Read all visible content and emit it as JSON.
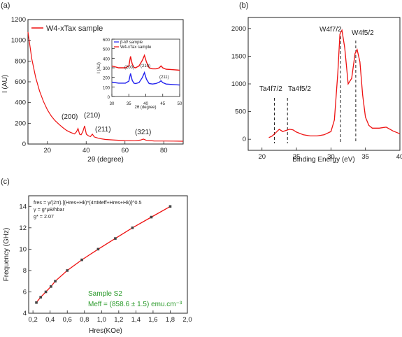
{
  "chart_data": [
    {
      "panel_label": "(a)",
      "type": "line",
      "xlabel": "2θ (degree)",
      "ylabel": "I (AU)",
      "xlim": [
        10,
        90
      ],
      "ylim": [
        0,
        1200
      ],
      "xticks": [
        "20",
        "40",
        "60",
        "80"
      ],
      "yticks": [
        "0",
        "200",
        "400",
        "600",
        "800",
        "1000",
        "1200"
      ],
      "legend": {
        "position": "top-right",
        "series_name": "W4-xTax sample"
      },
      "series": [
        {
          "name": "W4-xTax sample",
          "color": "#ee1111",
          "x": [
            10,
            12,
            14,
            16,
            18,
            20,
            22,
            24,
            26,
            28,
            30,
            32,
            34,
            35,
            35.8,
            36.6,
            37.4,
            38.3,
            39.2,
            40.1,
            41.2,
            42.2,
            43.2,
            44.2,
            46,
            48,
            50,
            55,
            60,
            65,
            68,
            69.5,
            71,
            75,
            80,
            85,
            90
          ],
          "y": [
            1080,
            820,
            640,
            510,
            410,
            330,
            270,
            225,
            190,
            158,
            130,
            112,
            98,
            118,
            150,
            95,
            90,
            120,
            175,
            95,
            78,
            72,
            95,
            68,
            58,
            50,
            44,
            38,
            33,
            32,
            38,
            48,
            36,
            30,
            29,
            28,
            27
          ]
        }
      ],
      "annotations": [
        "(200)",
        "(210)",
        "(211)",
        "(321)"
      ],
      "inset": {
        "xlabel": "2θ (degree)",
        "ylabel": "I (AU)",
        "xlim": [
          30,
          50
        ],
        "ylim": [
          0,
          600
        ],
        "xticks": [
          "30",
          "35",
          "40",
          "45",
          "50"
        ],
        "yticks": [
          "0",
          "100",
          "200",
          "300",
          "400",
          "500",
          "600"
        ],
        "legend": [
          "β-W sample",
          "W4-xTax sample"
        ],
        "annotations": [
          "(200)",
          "(210)",
          "(211)"
        ],
        "series": [
          {
            "name": "β-W sample",
            "color": "#2222ee",
            "x": [
              30,
              32,
              34,
              35,
              35.5,
              36,
              36.5,
              37,
              38,
              39,
              39.6,
              40.2,
              41,
              42,
              43,
              44,
              44.5,
              45,
              46,
              48,
              50
            ],
            "y": [
              150,
              140,
              140,
              160,
              240,
              170,
              140,
              135,
              145,
              200,
              250,
              180,
              135,
              130,
              135,
              150,
              165,
              145,
              130,
              125,
              120
            ]
          },
          {
            "name": "W4-xTax sample",
            "color": "#ee1111",
            "x": [
              30,
              32,
              34,
              35,
              35.5,
              36,
              36.5,
              37,
              38,
              39,
              39.6,
              40.2,
              41,
              42,
              43,
              44,
              44.5,
              45,
              46,
              48,
              50
            ],
            "y": [
              320,
              300,
              300,
              320,
              420,
              340,
              305,
              300,
              320,
              380,
              430,
              360,
              300,
              290,
              290,
              300,
              320,
              300,
              285,
              280,
              275
            ]
          }
        ]
      }
    },
    {
      "panel_label": "(b)",
      "type": "line",
      "xlabel": "Binding Energy (eV)",
      "xlim": [
        18,
        40
      ],
      "ylim": [
        -200,
        2200
      ],
      "xticks": [
        "20",
        "25",
        "30",
        "35",
        "40"
      ],
      "yticks": [
        "0",
        "500",
        "1000",
        "1500",
        "2000"
      ],
      "series": [
        {
          "name": "",
          "color": "#ee1111",
          "x": [
            21,
            21.5,
            22,
            22.5,
            23,
            23.5,
            24,
            24.5,
            25,
            26,
            27,
            28,
            29,
            30,
            30.5,
            31,
            31.3,
            31.6,
            32,
            32.5,
            33,
            33.5,
            33.8,
            34.2,
            34.6,
            35,
            35.5,
            36,
            37,
            38,
            39,
            40
          ],
          "y": [
            30,
            60,
            120,
            180,
            140,
            160,
            180,
            170,
            130,
            80,
            60,
            60,
            80,
            140,
            350,
            1200,
            1900,
            1970,
            1650,
            1000,
            1100,
            1550,
            1620,
            1400,
            800,
            400,
            250,
            200,
            200,
            220,
            150,
            100
          ]
        }
      ],
      "reference_lines_x": [
        21.8,
        23.7,
        31.4,
        33.6
      ],
      "annotations": [
        "Ta4f7/2",
        "Ta4f5/2",
        "W4f7/2",
        "W4f5/2"
      ]
    },
    {
      "panel_label": "(c)",
      "type": "scatter",
      "xlabel": "Hres(KOe)",
      "ylabel": "Frequency (GHz)",
      "xlim": [
        0.15,
        2.0
      ],
      "ylim": [
        4,
        15
      ],
      "xticks": [
        "0,2",
        "0,4",
        "0,6",
        "0,8",
        "1,0",
        "1,2",
        "1,4",
        "1,6",
        "1,8",
        "2,0"
      ],
      "yticks": [
        "4",
        "6",
        "8",
        "10",
        "12",
        "14"
      ],
      "series": [
        {
          "name": "",
          "color": "#333333",
          "fit_color": "#ee1111",
          "x": [
            0.24,
            0.29,
            0.35,
            0.41,
            0.46,
            0.6,
            0.77,
            0.96,
            1.16,
            1.36,
            1.58,
            1.8
          ],
          "y": [
            5.0,
            5.5,
            6.0,
            6.5,
            7.0,
            8.0,
            9.0,
            10.0,
            11.0,
            12.0,
            13.0,
            14.0
          ]
        }
      ],
      "equation_lines": [
        "fres = γ/(2π).[(Hres+Hk)*(4πMeff+Hres+Hk)]^0.5",
        "γ = g*μB/hbar",
        "g* = 2.07"
      ],
      "sample_label": "Sample S2",
      "meff_label": "Meff = (858.6 ± 1.5) emu.cm⁻³"
    }
  ]
}
